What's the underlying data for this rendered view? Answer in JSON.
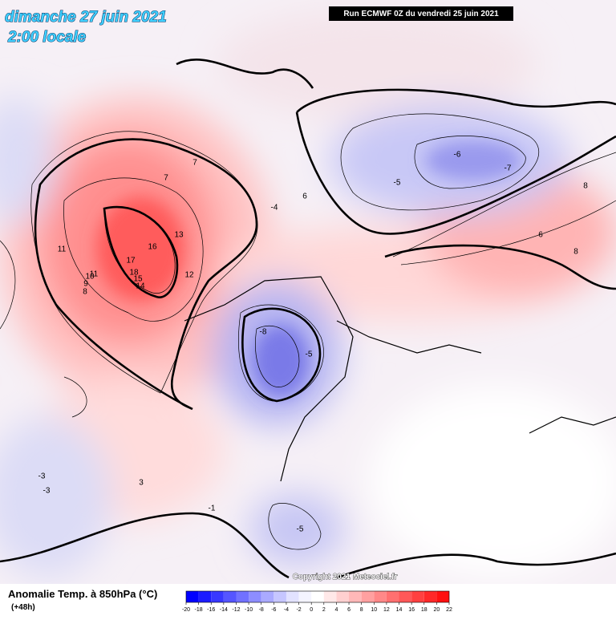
{
  "header": {
    "title": "dimanche 27 juin 2021",
    "subtitle": "2:00 locale",
    "run": "Run ECMWF 0Z du vendredi 25 juin 2021"
  },
  "copyright": "Copyright 2021 Meteociel.fr",
  "legend": {
    "title": "Anomalie Temp. à 850hPa (°C)",
    "lead": "(+48h)",
    "ticks": [
      -20,
      -18,
      -16,
      -14,
      -12,
      -10,
      -8,
      -6,
      -4,
      -2,
      0,
      2,
      4,
      6,
      8,
      10,
      12,
      14,
      16,
      18,
      20,
      22
    ],
    "colors": [
      "#0000ff",
      "#1c1cff",
      "#3838ff",
      "#5555ff",
      "#7171ff",
      "#8d8dff",
      "#aaaaff",
      "#c6c6ff",
      "#e2e2ff",
      "#f4f4ff",
      "#ffffff",
      "#ffe8e8",
      "#ffd0d0",
      "#ffb8b8",
      "#ffa0a0",
      "#ff8888",
      "#ff7070",
      "#ff5858",
      "#ff4040",
      "#ff2828",
      "#ff1010"
    ]
  },
  "map": {
    "labels": [
      "18",
      "16",
      "17",
      "15",
      "14",
      "13",
      "12",
      "11",
      "11",
      "10",
      "9",
      "8",
      "7",
      "7",
      "6",
      "-8",
      "-5",
      "-4",
      "-6",
      "-7",
      "-5",
      "8",
      "6",
      "8",
      "-1",
      "-3",
      "3",
      "-3",
      "-5"
    ]
  }
}
